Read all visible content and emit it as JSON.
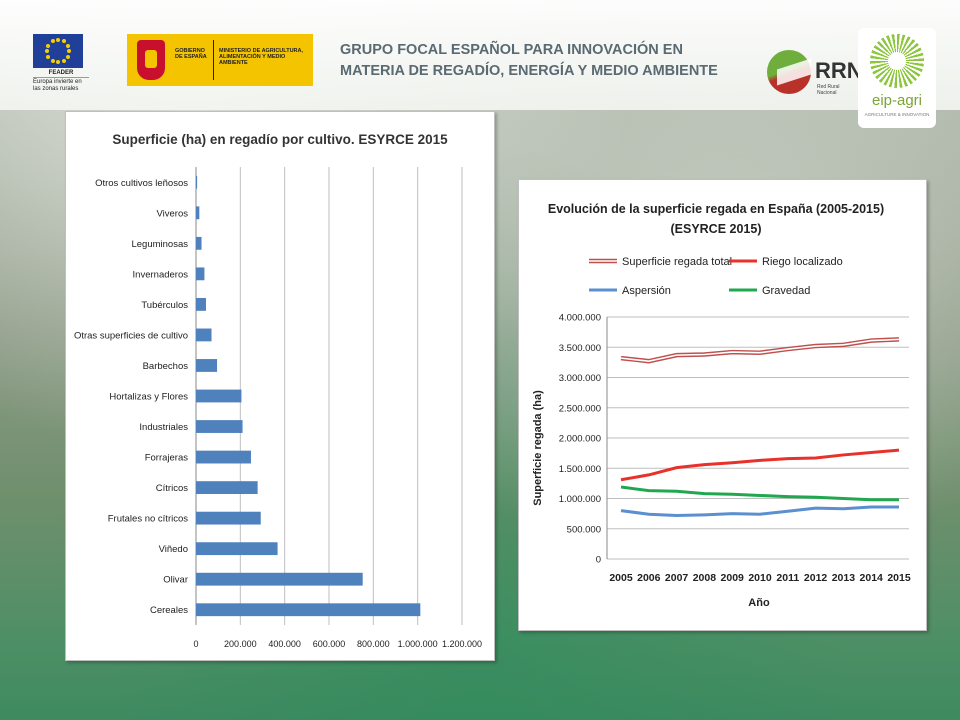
{
  "header": {
    "eu": {
      "feader_label": "FEADER",
      "tagline": "Europa invierte en las zonas rurales"
    },
    "gobierno": {
      "left_text": "GOBIERNO DE ESPAÑA",
      "right_text": "MINISTERIO DE AGRICULTURA, ALIMENTACIÓN Y MEDIO AMBIENTE"
    },
    "title_line1": "GRUPO FOCAL ESPAÑOL PARA INNOVACIÓN EN",
    "title_line2": "MATERIA DE REGADÍO, ENERGÍA Y MEDIO AMBIENTE",
    "rrn": {
      "label": "RRN",
      "sub": "Red Rural Nacional"
    },
    "eip": {
      "label": "eip-agri",
      "sub": "AGRICULTURE & INNOVATION"
    }
  },
  "colors": {
    "bar": "#4f81bd",
    "total": "#c0504d",
    "localizado": "#e8312b",
    "aspersion": "#5b8fd0",
    "gravedad": "#21a84f",
    "grid": "#bfbfbf",
    "title_text": "#5a6a72"
  },
  "chart_data": [
    {
      "type": "bar",
      "orientation": "horizontal",
      "title": "Superficie (ha) en regadío por cultivo. ESYRCE 2015",
      "categories": [
        "Otros cultivos leñosos",
        "Viveros",
        "Leguminosas",
        "Invernaderos",
        "Tubérculos",
        "Otras superficies de cultivo",
        "Barbechos",
        "Hortalizas y Flores",
        "Industriales",
        "Forrajeras",
        "Cítricos",
        "Frutales no cítricos",
        "Viñedo",
        "Olivar",
        "Cereales"
      ],
      "values": [
        5000,
        15000,
        25000,
        38000,
        45000,
        70000,
        95000,
        205000,
        210000,
        248000,
        278000,
        292000,
        368000,
        752000,
        1012000
      ],
      "xlim": [
        0,
        1200000
      ],
      "xticks": [
        "0",
        "200.000",
        "400.000",
        "600.000",
        "800.000",
        "1.000.000",
        "1.200.000"
      ],
      "grid": true
    },
    {
      "type": "line",
      "title_line1": "Evolución de la superficie regada en España (2005-2015)",
      "title_line2": "(ESYRCE 2015)",
      "xlabel": "Año",
      "ylabel": "Superficie regada (ha)",
      "x": [
        "2005",
        "2006",
        "2007",
        "2008",
        "2009",
        "2010",
        "2011",
        "2012",
        "2013",
        "2014",
        "2015"
      ],
      "ylim": [
        0,
        4000000
      ],
      "yticks": [
        "0",
        "500.000",
        "1.000.000",
        "1.500.000",
        "2.000.000",
        "2.500.000",
        "3.000.000",
        "3.500.000",
        "4.000.000"
      ],
      "legend_position": "top",
      "grid": true,
      "series": [
        {
          "name": "Superficie regada total",
          "values": [
            3320000,
            3270000,
            3370000,
            3380000,
            3420000,
            3410000,
            3470000,
            3520000,
            3540000,
            3610000,
            3630000
          ]
        },
        {
          "name": "Riego localizado",
          "values": [
            1310000,
            1390000,
            1510000,
            1560000,
            1590000,
            1630000,
            1660000,
            1670000,
            1720000,
            1760000,
            1800000
          ]
        },
        {
          "name": "Aspersión",
          "values": [
            800000,
            740000,
            720000,
            730000,
            750000,
            740000,
            790000,
            840000,
            830000,
            860000,
            860000
          ]
        },
        {
          "name": "Gravedad",
          "values": [
            1190000,
            1130000,
            1120000,
            1080000,
            1070000,
            1050000,
            1030000,
            1020000,
            1000000,
            980000,
            980000
          ]
        }
      ]
    }
  ]
}
